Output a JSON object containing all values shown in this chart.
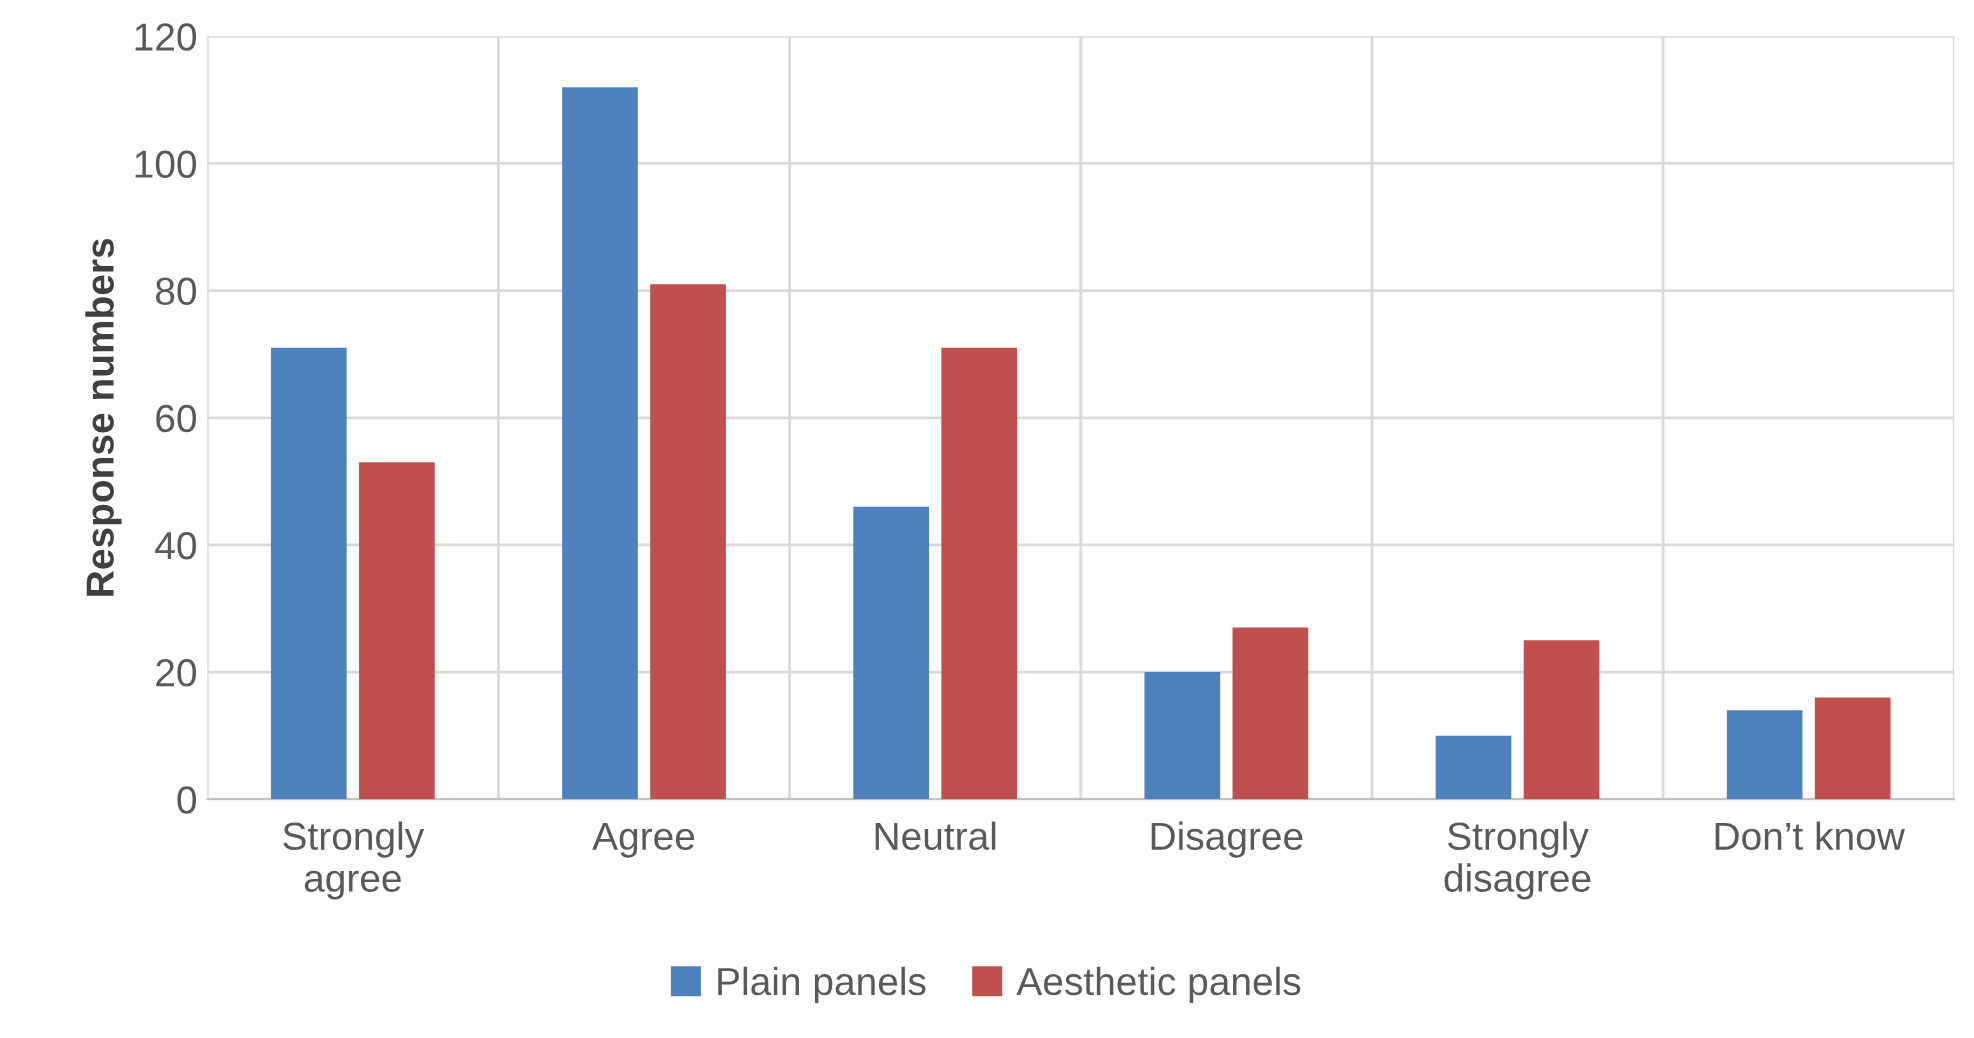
{
  "chart_data": {
    "type": "bar",
    "ylabel": "Response numbers",
    "categories": [
      "Strongly agree",
      "Agree",
      "Neutral",
      "Disagree",
      "Strongly disagree",
      "Don’t know"
    ],
    "series": [
      {
        "name": "Plain panels",
        "color": "#4f81bd",
        "values": [
          71,
          112,
          46,
          20,
          10,
          14
        ]
      },
      {
        "name": "Aesthetic panels",
        "color": "#c0504d",
        "values": [
          53,
          81,
          71,
          27,
          25,
          16
        ]
      }
    ],
    "ylim": [
      0,
      120
    ],
    "yticks": [
      0,
      20,
      40,
      60,
      80,
      100,
      120
    ],
    "grid": true,
    "legend": "bottom"
  }
}
